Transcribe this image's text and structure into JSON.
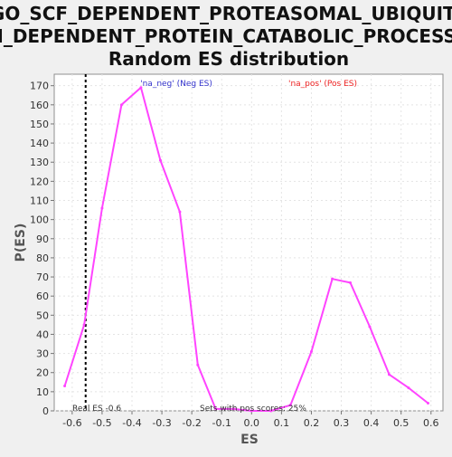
{
  "chart_data": {
    "type": "line",
    "title": [
      "GO_SCF_DEPENDENT_PROTEASOMAL_UBIQUITI",
      "N_DEPENDENT_PROTEIN_CATABOLIC_PROCESS:",
      "Random ES distribution"
    ],
    "xlabel": "ES",
    "ylabel": "P(ES)",
    "xlim": [
      -0.66,
      0.64
    ],
    "ylim": [
      0,
      176
    ],
    "x_ticks": [
      -0.6,
      -0.5,
      -0.4,
      -0.3,
      -0.2,
      -0.1,
      0.0,
      0.1,
      0.2,
      0.3,
      0.4,
      0.5,
      0.6
    ],
    "x_tick_labels": [
      "-0.6",
      "-0.5",
      "-0.4",
      "-0.3",
      "-0.2",
      "-0.1",
      "0.0",
      "0.1",
      "0.2",
      "0.3",
      "0.4",
      "0.5",
      "0.6"
    ],
    "y_ticks": [
      0,
      10,
      20,
      30,
      40,
      50,
      60,
      70,
      80,
      90,
      100,
      110,
      120,
      130,
      140,
      150,
      160,
      170
    ],
    "y_tick_labels": [
      "0",
      "10",
      "20",
      "30",
      "40",
      "50",
      "60",
      "70",
      "80",
      "90",
      "100",
      "110",
      "120",
      "130",
      "140",
      "150",
      "160",
      "170"
    ],
    "grid": true,
    "series": [
      {
        "name": "Random ES distribution",
        "color": "#ff44ff",
        "x": [
          -0.625,
          -0.56,
          -0.5,
          -0.435,
          -0.37,
          -0.305,
          -0.24,
          -0.18,
          -0.12,
          -0.06,
          0.0,
          0.065,
          0.13,
          0.2,
          0.27,
          0.33,
          0.395,
          0.46,
          0.525,
          0.59
        ],
        "y": [
          13,
          45,
          106,
          160,
          169,
          131,
          104,
          24,
          1,
          1,
          0,
          0,
          3,
          31,
          69,
          67,
          44,
          19,
          12,
          4
        ]
      }
    ],
    "reference_line": {
      "x": -0.555,
      "label": "Real ES -0.6",
      "color": "#000000"
    },
    "annotations": {
      "neg_label": "'na_neg' (Neg ES)",
      "neg_color": "#3333cc",
      "pos_label": "'na_pos' (Pos ES)",
      "pos_color": "#ee2222",
      "sets_label": "Sets with pos scores: 25%"
    }
  }
}
